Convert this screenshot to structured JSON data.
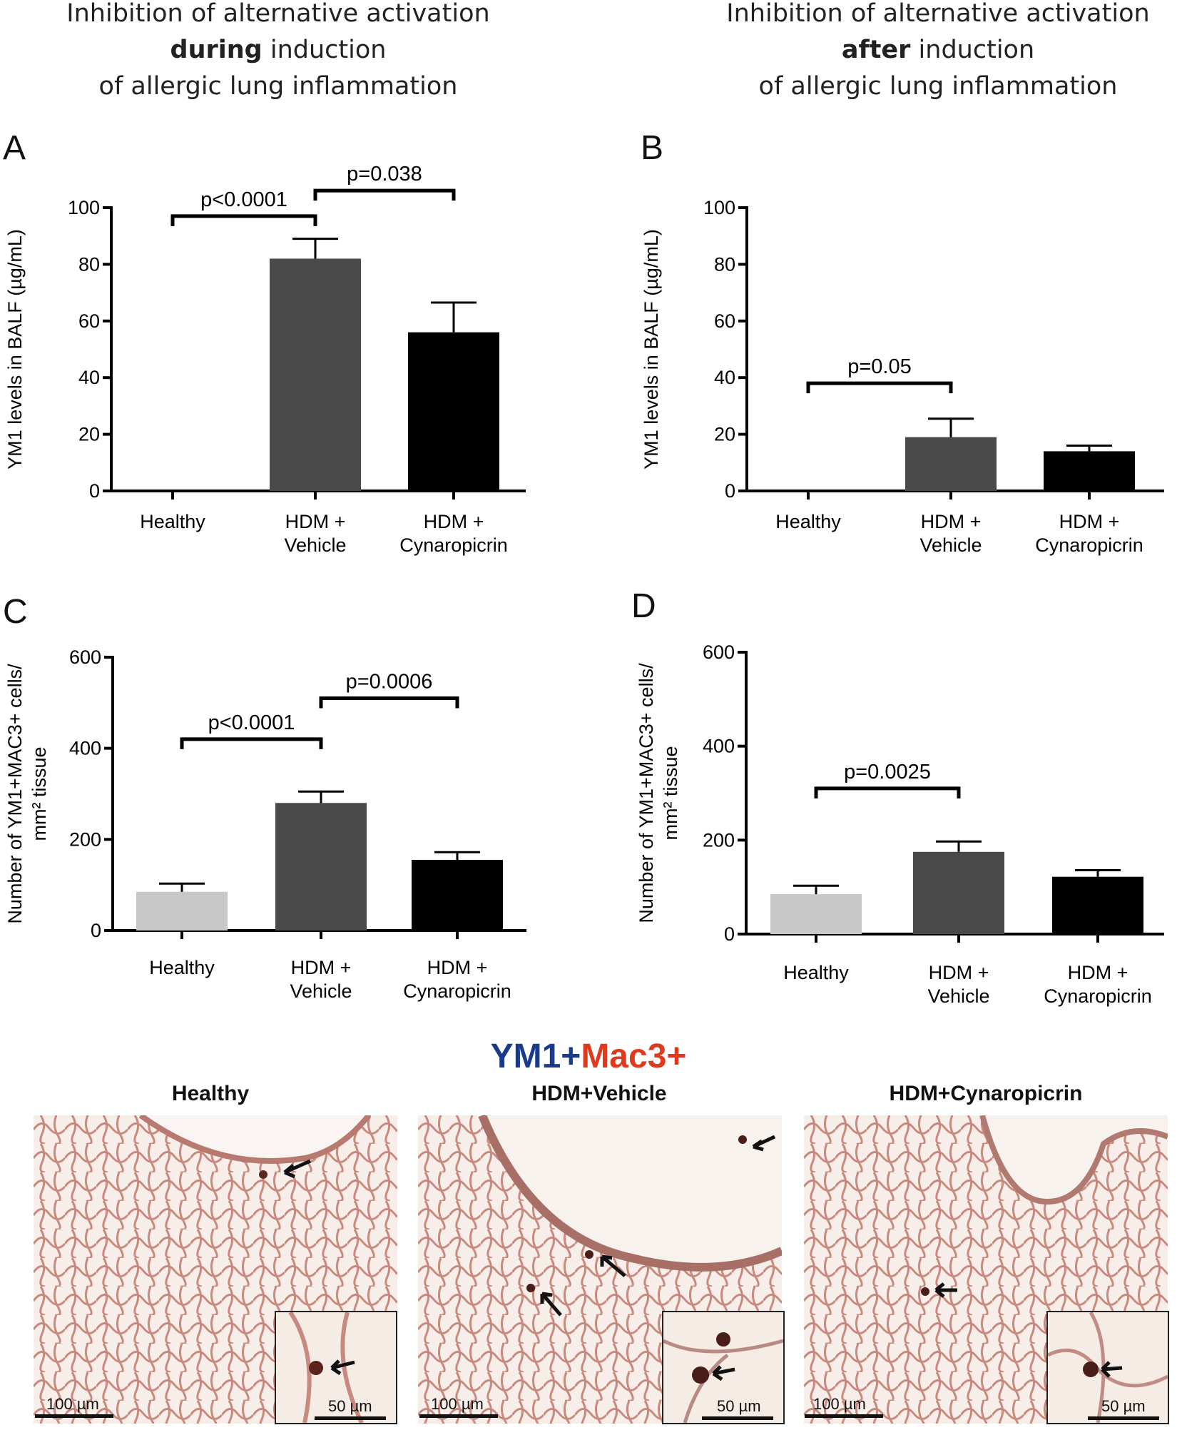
{
  "headings": {
    "left": {
      "line1": "Inhibition of alternative activation",
      "bold": "during",
      "line2_rest": " induction",
      "line3": "of allergic lung inflammation"
    },
    "right": {
      "line1": "Inhibition of alternative activation",
      "bold": "after",
      "line2_rest": " induction",
      "line3": "of allergic lung inflammation"
    }
  },
  "panels": {
    "A": "A",
    "B": "B",
    "C": "C",
    "D": "D"
  },
  "colors": {
    "healthy": "#c8c8c8",
    "vehicle": "#4a4a4a",
    "cynaropicrin": "#000000",
    "ym1": "#1a3a8a",
    "mac3": "#e03a1e"
  },
  "chart_data": [
    {
      "type": "bar",
      "panel": "A",
      "ylabel": "YM1 levels in BALF (µg/mL)",
      "categories": [
        [
          "Healthy"
        ],
        [
          "HDM +",
          "Vehicle"
        ],
        [
          "HDM +",
          "Cynaropicrin"
        ]
      ],
      "values": [
        0,
        82,
        56
      ],
      "errors": [
        0,
        7,
        10.5
      ],
      "ylim": [
        0,
        100
      ],
      "yticks": [
        0,
        20,
        40,
        60,
        80,
        100
      ],
      "comparisons": [
        {
          "from": 0,
          "to": 1,
          "label": "p<0.0001",
          "y": 97
        },
        {
          "from": 1,
          "to": 2,
          "label": "p=0.038",
          "y": 106
        }
      ]
    },
    {
      "type": "bar",
      "panel": "B",
      "ylabel": "YM1 levels in BALF (µg/mL)",
      "categories": [
        [
          "Healthy"
        ],
        [
          "HDM +",
          "Vehicle"
        ],
        [
          "HDM +",
          "Cynaropicrin"
        ]
      ],
      "values": [
        0,
        19,
        14
      ],
      "errors": [
        0,
        6.5,
        2
      ],
      "ylim": [
        0,
        100
      ],
      "yticks": [
        0,
        20,
        40,
        60,
        80,
        100
      ],
      "comparisons": [
        {
          "from": 0,
          "to": 1,
          "label": "p=0.05",
          "y": 38
        }
      ]
    },
    {
      "type": "bar",
      "panel": "C",
      "ylabel_lines": [
        "Number of YM1+MAC3+ cells/",
        "mm² tissue"
      ],
      "categories": [
        [
          "Healthy"
        ],
        [
          "HDM +",
          "Vehicle"
        ],
        [
          "HDM +",
          "Cynaropicrin"
        ]
      ],
      "values": [
        85,
        280,
        155
      ],
      "errors": [
        18,
        25,
        17
      ],
      "ylim": [
        0,
        600
      ],
      "yticks": [
        0,
        200,
        400,
        600
      ],
      "comparisons": [
        {
          "from": 0,
          "to": 1,
          "label": "p<0.0001",
          "y": 420
        },
        {
          "from": 1,
          "to": 2,
          "label": "p=0.0006",
          "y": 510
        }
      ]
    },
    {
      "type": "bar",
      "panel": "D",
      "ylabel_lines": [
        "Number of YM1+MAC3+ cells/",
        "mm² tissue"
      ],
      "categories": [
        [
          "Healthy"
        ],
        [
          "HDM +",
          "Vehicle"
        ],
        [
          "HDM +",
          "Cynaropicrin"
        ]
      ],
      "values": [
        85,
        175,
        122
      ],
      "errors": [
        18,
        22,
        14
      ],
      "ylim": [
        0,
        600
      ],
      "yticks": [
        0,
        200,
        400,
        600
      ],
      "comparisons": [
        {
          "from": 0,
          "to": 1,
          "label": "p=0.0025",
          "y": 310
        }
      ]
    }
  ],
  "staining": {
    "ym1": "YM1+",
    "mac3": "Mac3+"
  },
  "micrographs": [
    {
      "label": "Healthy",
      "scale_main": "100 µm",
      "scale_inset": "50 µm"
    },
    {
      "label": "HDM+Vehicle",
      "scale_main": "100 µm",
      "scale_inset": "50 µm"
    },
    {
      "label": "HDM+Cynaropicrin",
      "scale_main": "100 µm",
      "scale_inset": "50 µm"
    }
  ]
}
